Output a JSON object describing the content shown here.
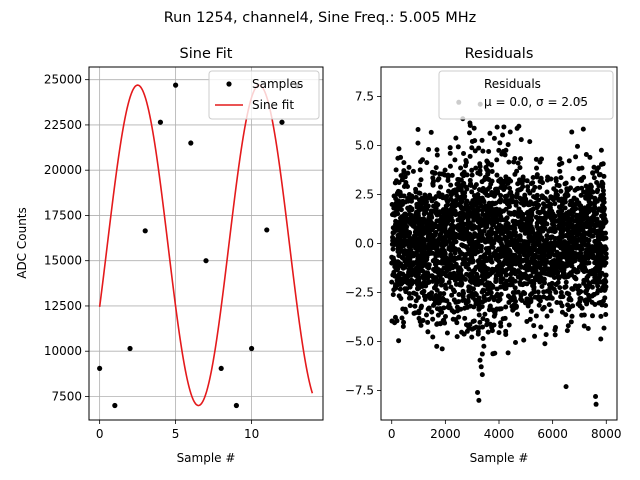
{
  "suptitle": "Run 1254, channel4, Sine Freq.: 5.005 MHz",
  "chart_data": [
    {
      "type": "line",
      "title": "Sine Fit",
      "xlabel": "Sample #",
      "ylabel": "ADC Counts",
      "xlim": [
        -0.7,
        14.7
      ],
      "ylim": [
        6200,
        25700
      ],
      "grid": true,
      "legend": "top-right",
      "xticks": [
        0,
        5,
        10
      ],
      "yticks": [
        7500,
        10000,
        12500,
        15000,
        17500,
        20000,
        22500,
        25000
      ],
      "xtick_labels": [
        "0",
        "5",
        "10"
      ],
      "ytick_labels": [
        "7500",
        "10000",
        "12500",
        "15000",
        "17500",
        "20000",
        "22500",
        "25000"
      ],
      "series": [
        {
          "name": "Samples",
          "style": "markers",
          "color": "#000000",
          "x": [
            0,
            1,
            2,
            3,
            4,
            5,
            6,
            7,
            8,
            9,
            10,
            11,
            12,
            13
          ],
          "y": [
            9050,
            7000,
            10150,
            16650,
            22650,
            24700,
            21500,
            15000,
            9050,
            7000,
            10150,
            16700,
            22650,
            24650
          ]
        },
        {
          "name": "Sine fit",
          "style": "line",
          "color": "#e41a1c",
          "fit": {
            "amplitude": 8850,
            "offset": 15850,
            "period_samples": 8,
            "phase_deg": -112.6,
            "x_range": [
              0,
              14
            ]
          }
        }
      ]
    },
    {
      "type": "scatter",
      "title": "Residuals",
      "xlabel": "Sample #",
      "ylabel": "",
      "xlim": [
        -400,
        8400
      ],
      "ylim": [
        -9.0,
        9.0
      ],
      "grid": false,
      "legend": "top-right",
      "xticks": [
        0,
        2000,
        4000,
        6000,
        8000
      ],
      "yticks": [
        -7.5,
        -5.0,
        -2.5,
        0.0,
        2.5,
        5.0,
        7.5
      ],
      "xtick_labels": [
        "0",
        "2000",
        "4000",
        "6000",
        "8000"
      ],
      "ytick_labels": [
        "−7.5",
        "−5.0",
        "−2.5",
        "0.0",
        "2.5",
        "5.0",
        "7.5"
      ],
      "series": [
        {
          "name": "Residuals",
          "color": "#000000",
          "n_points": 8000,
          "mean": 0.0,
          "std": 2.05
        }
      ],
      "legend_text": [
        "Residuals",
        "μ = 0.0, σ = 2.05"
      ],
      "outliers": [
        {
          "x": 3300,
          "y": 7.1
        },
        {
          "x": 3250,
          "y": -8.0
        },
        {
          "x": 6500,
          "y": -7.3
        },
        {
          "x": 7620,
          "y": -8.2
        },
        {
          "x": 7600,
          "y": -7.8
        },
        {
          "x": 3200,
          "y": -7.6
        },
        {
          "x": 7000,
          "y": 7.3
        },
        {
          "x": 2500,
          "y": 7.2
        }
      ]
    }
  ]
}
